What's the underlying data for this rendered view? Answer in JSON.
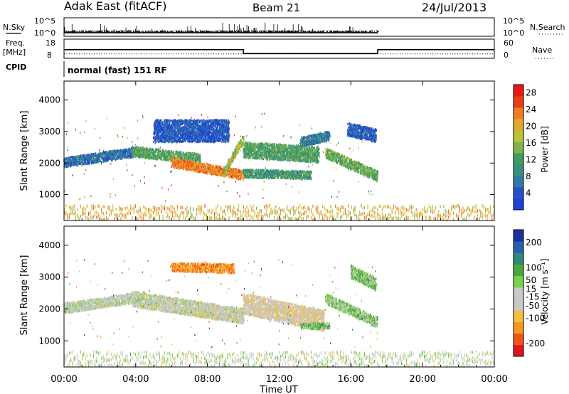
{
  "header": {
    "station": "Adak East (fitACF)",
    "beam": "Beam 21",
    "date": "24/Jul/2013"
  },
  "nsky_panel": {
    "left_label": "N.Sky",
    "right_label": "N.Search",
    "left_ticks": [
      "10^5",
      "10^0"
    ],
    "right_ticks": [
      "10^5",
      "10^0"
    ]
  },
  "freq_panel": {
    "left_label_line1": "Freq.",
    "left_label_line2": "[MHz]",
    "left_ticks": [
      "18",
      "8"
    ],
    "right_ticks": [
      "60",
      "0"
    ],
    "right_label": "Nave"
  },
  "cpid": {
    "label": "CPID",
    "mode_text": "normal (fast) 151 RF"
  },
  "colors": {
    "power_scale": [
      "#1f3fd6",
      "#2451c9",
      "#2f7aa3",
      "#3a8f7a",
      "#3f9d62",
      "#7fb54a",
      "#b9c238",
      "#e4a92c",
      "#f07d22",
      "#ee3b17",
      "#e8190f"
    ],
    "velocity_scale": [
      "#e0141a",
      "#f25418",
      "#f5981e",
      "#f7be3a",
      "#c8c8c8",
      "#c8c8c8",
      "#7bd24b",
      "#4aa83c",
      "#2f8a7a",
      "#2a5fb0",
      "#1e2fa0"
    ]
  },
  "chart_data": [
    {
      "type": "heatmap",
      "panel": "power",
      "ylabel": "Slant Range [km]",
      "xlabel": "",
      "x_ticks": [
        "00:00",
        "04:00",
        "08:00",
        "12:00",
        "16:00",
        "20:00",
        "00:00"
      ],
      "y_ticks": [
        1000,
        2000,
        3000,
        4000
      ],
      "ylim": [
        180,
        4600
      ],
      "xlim_hours": [
        0,
        24
      ],
      "colorbar": {
        "label": "Power [dB]",
        "ticks": [
          4,
          8,
          12,
          16,
          20,
          24,
          28
        ],
        "range": [
          0,
          30
        ]
      },
      "bands": [
        {
          "t0": 0.0,
          "t1": 4.2,
          "r_start": 2050,
          "r_end": 2400,
          "width": 300,
          "level": 0.18
        },
        {
          "t0": 3.8,
          "t1": 7.6,
          "r_start": 2400,
          "r_end": 2150,
          "width": 330,
          "level": 0.42
        },
        {
          "t0": 6.0,
          "t1": 10.0,
          "r_start": 2050,
          "r_end": 1650,
          "width": 300,
          "level": 0.78
        },
        {
          "t0": 8.9,
          "t1": 10.0,
          "r_start": 1750,
          "r_end": 2800,
          "width": 260,
          "level": 0.55
        },
        {
          "t0": 10.0,
          "t1": 14.2,
          "r_start": 2450,
          "r_end": 2300,
          "width": 500,
          "level": 0.4
        },
        {
          "t0": 10.0,
          "t1": 13.8,
          "r_start": 1700,
          "r_end": 1650,
          "width": 260,
          "level": 0.35
        },
        {
          "t0": 13.2,
          "t1": 14.8,
          "r_start": 2700,
          "r_end": 2900,
          "width": 300,
          "level": 0.22
        },
        {
          "t0": 14.6,
          "t1": 17.5,
          "r_start": 2350,
          "r_end": 1600,
          "width": 320,
          "level": 0.45
        },
        {
          "t0": 5.0,
          "t1": 9.2,
          "r_start": 3050,
          "r_end": 3050,
          "width": 700,
          "level": 0.1
        },
        {
          "t0": 15.8,
          "t1": 17.4,
          "r_start": 3100,
          "r_end": 2900,
          "width": 420,
          "level": 0.12
        }
      ],
      "ground_scatter": {
        "t0": 0.0,
        "t1": 24.0,
        "r_from": 250,
        "r_to": 700,
        "level": 0.68
      }
    },
    {
      "type": "heatmap",
      "panel": "velocity",
      "ylabel": "Slant Range [km]",
      "xlabel": "Time UT",
      "x_ticks": [
        "00:00",
        "04:00",
        "08:00",
        "12:00",
        "16:00",
        "20:00",
        "00:00"
      ],
      "y_ticks": [
        1000,
        2000,
        3000,
        4000
      ],
      "ylim": [
        180,
        4600
      ],
      "xlim_hours": [
        0,
        24
      ],
      "colorbar": {
        "label": "Velocity [m s⁻¹]",
        "ticks": [
          200,
          100,
          50,
          15,
          -15,
          -50,
          -100,
          -200
        ],
        "range": [
          -250,
          250
        ]
      },
      "bands": [
        {
          "t0": 0.0,
          "t1": 4.2,
          "r_start": 2050,
          "r_end": 2400,
          "width": 320,
          "level": 0.48
        },
        {
          "t0": 3.8,
          "t1": 10.0,
          "r_start": 2350,
          "r_end": 1800,
          "width": 480,
          "level": 0.46
        },
        {
          "t0": 10.0,
          "t1": 14.5,
          "r_start": 2200,
          "r_end": 1650,
          "width": 650,
          "level": 0.4
        },
        {
          "t0": 13.2,
          "t1": 14.8,
          "r_start": 1500,
          "r_end": 1500,
          "width": 180,
          "level": 0.64
        },
        {
          "t0": 14.6,
          "t1": 17.5,
          "r_start": 2350,
          "r_end": 1600,
          "width": 320,
          "level": 0.58
        },
        {
          "t0": 6.0,
          "t1": 9.5,
          "r_start": 3350,
          "r_end": 3300,
          "width": 280,
          "level": 0.2
        },
        {
          "t0": 16.0,
          "t1": 17.4,
          "r_start": 3200,
          "r_end": 2800,
          "width": 400,
          "level": 0.62
        }
      ],
      "ground_scatter": {
        "t0": 0.0,
        "t1": 24.0,
        "r_from": 250,
        "r_to": 700,
        "level": 0.49
      }
    }
  ],
  "freq_series": {
    "type": "line",
    "segments": [
      {
        "t0": 0,
        "t1": 10,
        "freq": 12.5,
        "nave": 14
      },
      {
        "t0": 10,
        "t1": 17.5,
        "freq": 10.5,
        "nave": 14
      },
      {
        "t0": 17.5,
        "t1": 24,
        "freq": 12.5,
        "nave": 14
      }
    ],
    "freq_range": [
      8,
      18
    ],
    "nave_range": [
      0,
      60
    ]
  }
}
